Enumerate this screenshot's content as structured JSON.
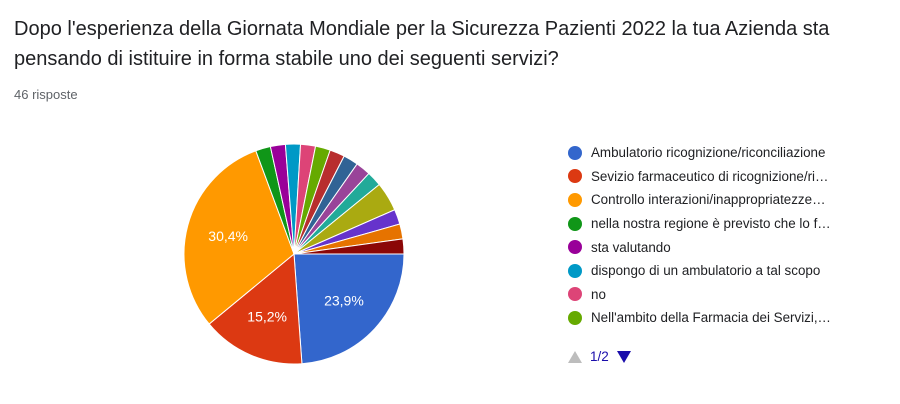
{
  "header": {
    "title": "Dopo l'esperienza della Giornata Mondiale per la Sicurezza  Pazienti 2022 la tua Azienda sta pensando di istituire in forma stabile uno dei seguenti servizi?",
    "responses": "46 risposte"
  },
  "legend": {
    "items": [
      {
        "label": "Ambulatorio ricognizione/riconciliazione",
        "color": "#3366cc"
      },
      {
        "label": "Sevizio farmaceutico di ricognizione/ri…",
        "color": "#dc3912"
      },
      {
        "label": "Controllo interazioni/inappropriatezze…",
        "color": "#ff9900"
      },
      {
        "label": "nella nostra regione è previsto che lo f…",
        "color": "#109618"
      },
      {
        "label": "sta valutando",
        "color": "#990099"
      },
      {
        "label": "dispongo di un ambulatorio a tal scopo",
        "color": "#0099c6"
      },
      {
        "label": "no",
        "color": "#dd4477"
      },
      {
        "label": "Nell'ambito della Farmacia dei Servizi,…",
        "color": "#66aa00"
      }
    ],
    "page": "1/2"
  },
  "chart_data": {
    "type": "pie",
    "title": "Dopo l'esperienza della Giornata Mondiale per la Sicurezza  Pazienti 2022 la tua Azienda sta pensando di istituire in forma stabile uno dei seguenti servizi?",
    "slices": [
      {
        "value": 23.9,
        "label": "23,9%",
        "color": "#3366cc"
      },
      {
        "value": 15.2,
        "label": "15,2%",
        "color": "#dc3912"
      },
      {
        "value": 30.4,
        "label": "30,4%",
        "color": "#ff9900"
      },
      {
        "value": 2.2,
        "color": "#109618"
      },
      {
        "value": 2.2,
        "color": "#990099"
      },
      {
        "value": 2.2,
        "color": "#0099c6"
      },
      {
        "value": 2.2,
        "color": "#dd4477"
      },
      {
        "value": 2.2,
        "color": "#66aa00"
      },
      {
        "value": 2.2,
        "color": "#b82e2e"
      },
      {
        "value": 2.2,
        "color": "#316395"
      },
      {
        "value": 2.2,
        "color": "#994499"
      },
      {
        "value": 2.2,
        "color": "#22aa99"
      },
      {
        "value": 4.3,
        "color": "#aaaa11"
      },
      {
        "value": 2.2,
        "color": "#6633cc"
      },
      {
        "value": 2.2,
        "color": "#e67300"
      },
      {
        "value": 2.2,
        "color": "#8b0707"
      }
    ]
  }
}
